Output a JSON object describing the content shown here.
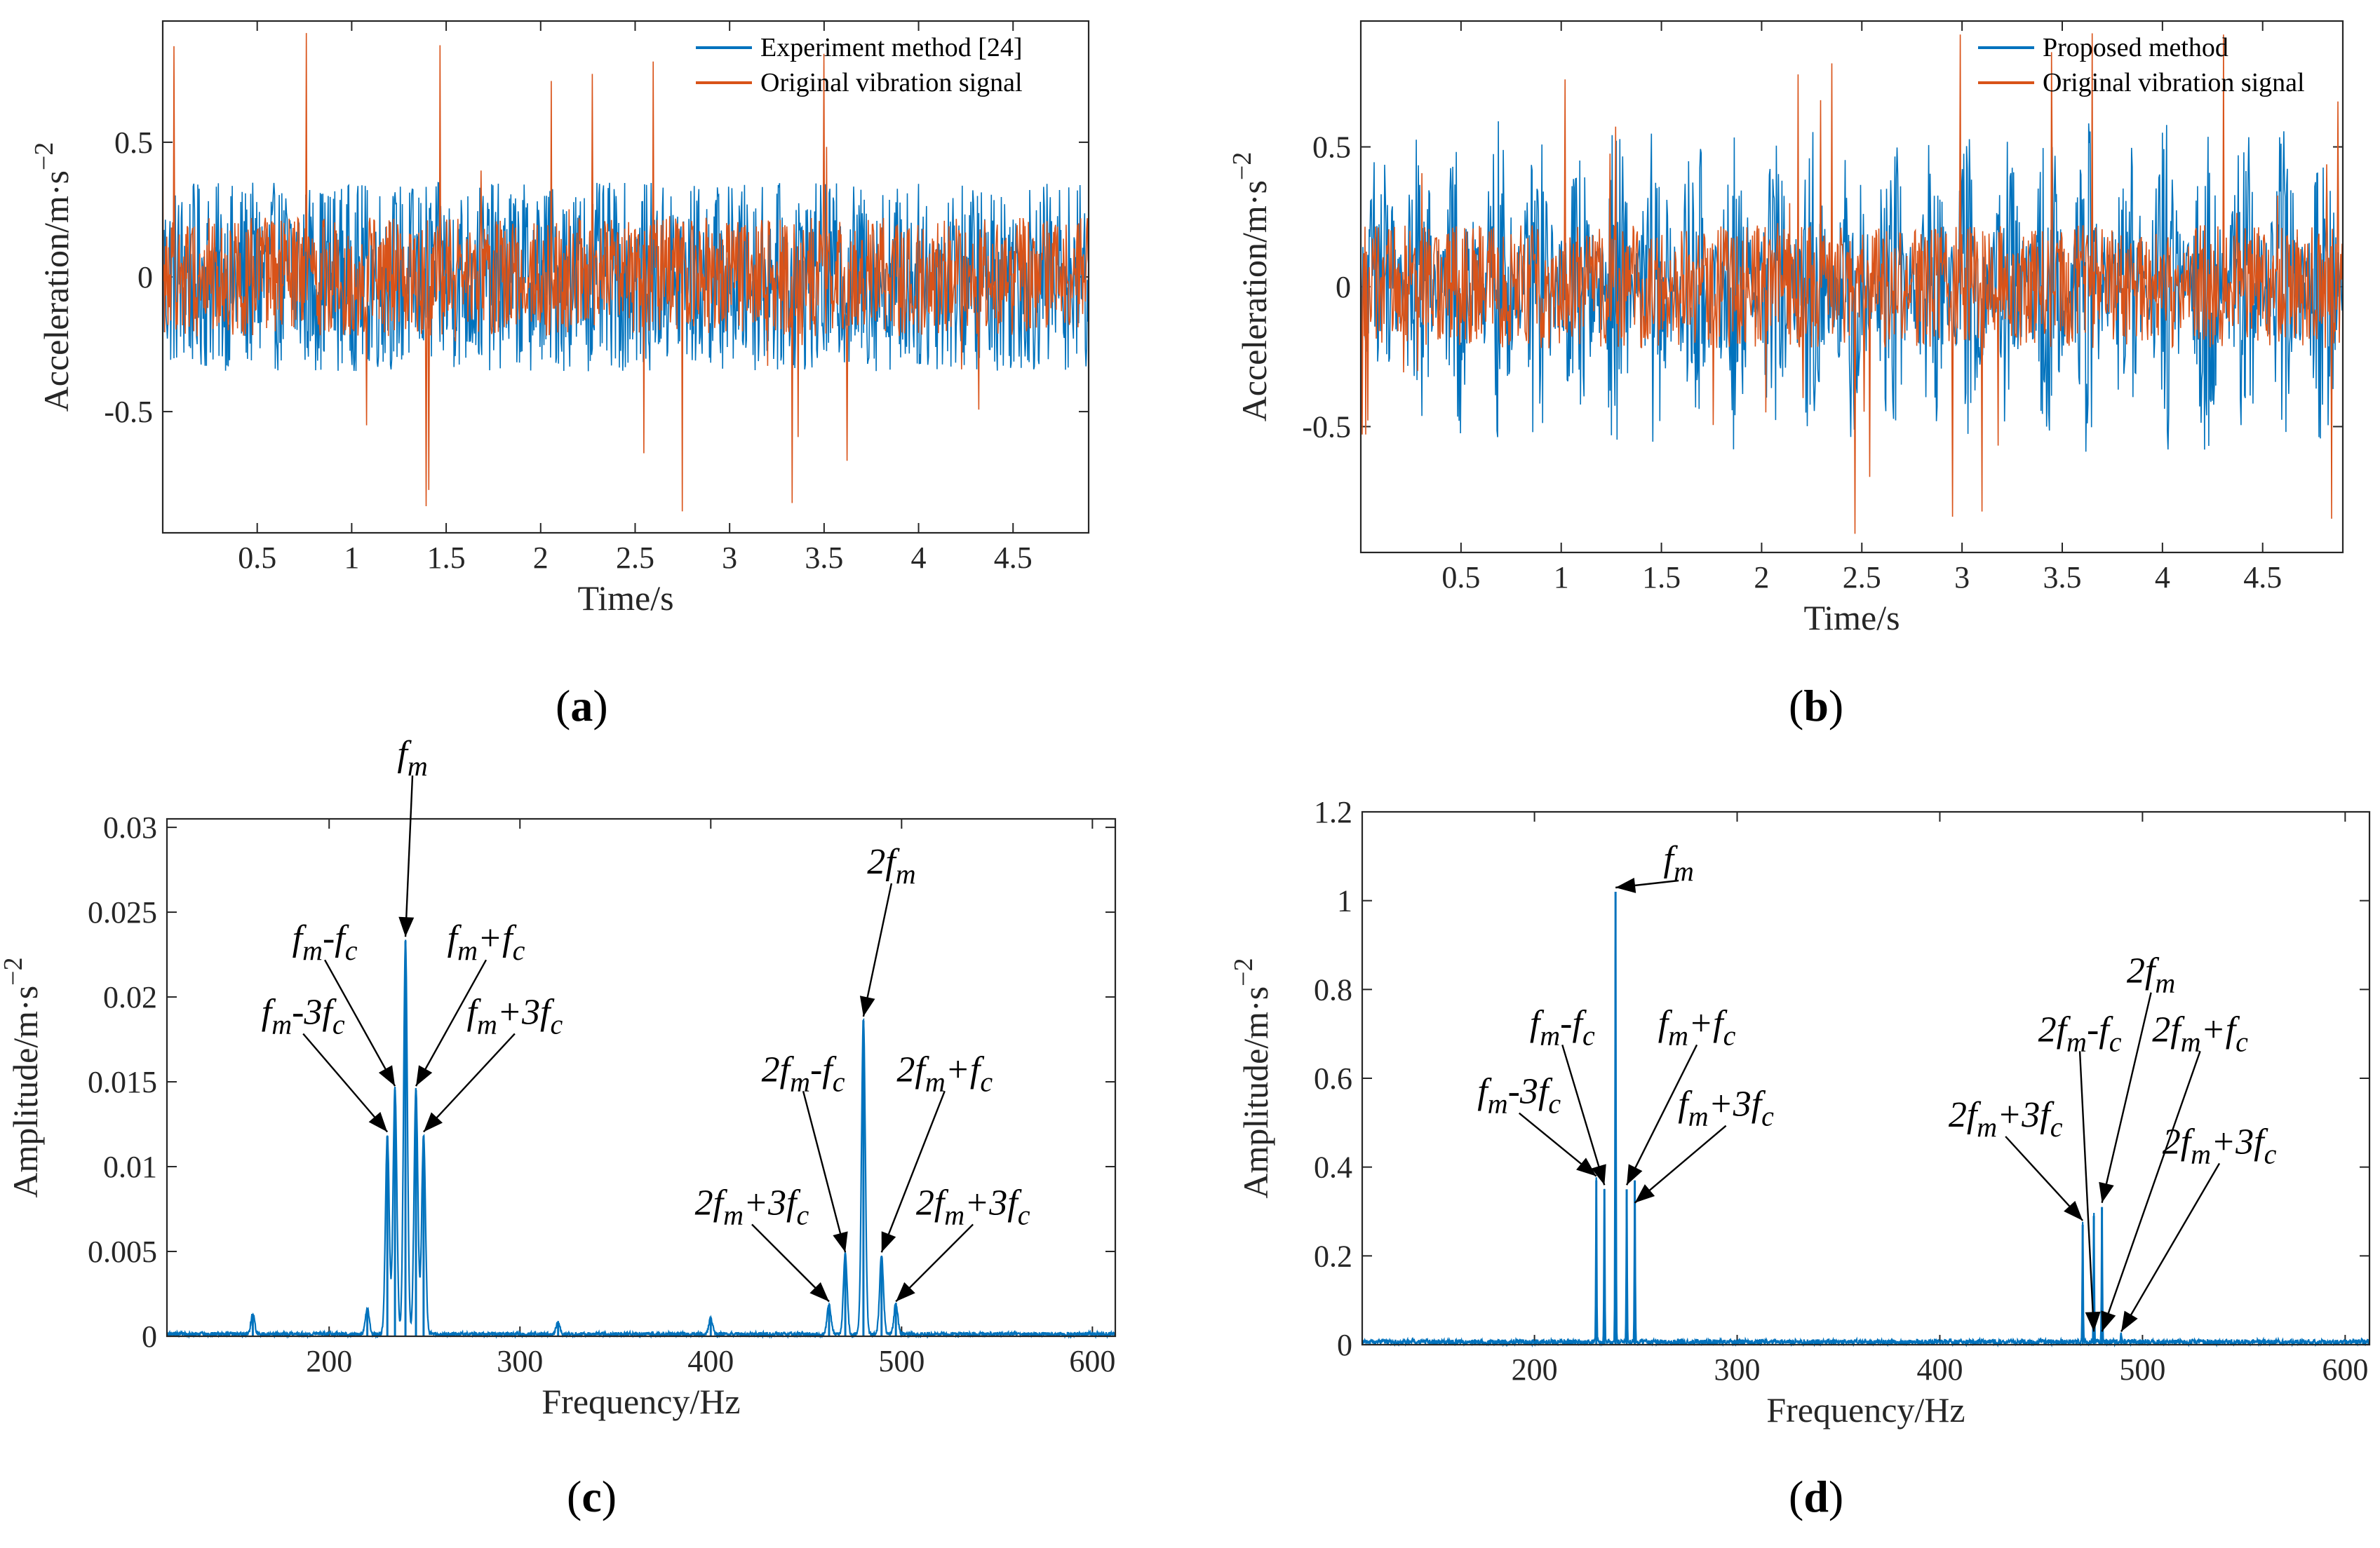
{
  "colors": {
    "blue": "#0072BD",
    "orange": "#D95319",
    "axis": "#262626"
  },
  "chart_data": [
    {
      "id": "a",
      "panel_label": "a",
      "type": "line",
      "xlabel": "Time/s",
      "ylabel": "Acceleration/m·s",
      "ylabel_exp": "−2",
      "xlim": [
        0.0,
        4.9
      ],
      "ylim": [
        -0.95,
        0.95
      ],
      "xticks": [
        0.5,
        1,
        1.5,
        2,
        2.5,
        3,
        3.5,
        4,
        4.5
      ],
      "xtick_labels": [
        "0.5",
        "1",
        "1.5",
        "2",
        "2.5",
        "3",
        "3.5",
        "4",
        "4.5"
      ],
      "yticks": [
        -0.5,
        0,
        0.5
      ],
      "ytick_labels": [
        "-0.5",
        "0",
        "0.5"
      ],
      "legend_position": "top-right",
      "series": [
        {
          "name": "Experiment method [24]",
          "color": "#0072BD",
          "typical_amplitude": 0.35,
          "peak_amplitude": 0.45,
          "modulated": false
        },
        {
          "name": "Original vibration signal",
          "color": "#D95319",
          "typical_amplitude": 0.22,
          "peak_amplitude": 0.92,
          "modulated": false
        }
      ],
      "annotations": []
    },
    {
      "id": "b",
      "panel_label": "b",
      "type": "line",
      "xlabel": "Time/s",
      "ylabel": "Acceleration/m·s",
      "ylabel_exp": "−2",
      "xlim": [
        0.0,
        4.9
      ],
      "ylim": [
        -0.95,
        0.95
      ],
      "xticks": [
        0.5,
        1,
        1.5,
        2,
        2.5,
        3,
        3.5,
        4,
        4.5
      ],
      "xtick_labels": [
        "0.5",
        "1",
        "1.5",
        "2",
        "2.5",
        "3",
        "3.5",
        "4",
        "4.5"
      ],
      "yticks": [
        -0.5,
        0,
        0.5
      ],
      "ytick_labels": [
        "-0.5",
        "0",
        "0.5"
      ],
      "legend_position": "top-right",
      "series": [
        {
          "name": "Proposed method",
          "color": "#0072BD",
          "typical_amplitude": 0.6,
          "peak_amplitude": 0.62,
          "modulated": true
        },
        {
          "name": "Original vibration signal",
          "color": "#D95319",
          "typical_amplitude": 0.22,
          "peak_amplitude": 0.92,
          "modulated": false
        }
      ],
      "annotations": []
    },
    {
      "id": "c",
      "panel_label": "c",
      "type": "line",
      "xlabel": "Frequency/Hz",
      "ylabel": "Amplitude/m·s",
      "ylabel_exp": "−2",
      "xlim": [
        115,
        612
      ],
      "ylim": [
        0,
        0.0305
      ],
      "xticks": [
        200,
        300,
        400,
        500,
        600
      ],
      "xtick_labels": [
        "200",
        "300",
        "400",
        "500",
        "600"
      ],
      "yticks": [
        0,
        0.005,
        0.01,
        0.015,
        0.02,
        0.025,
        0.03
      ],
      "ytick_labels": [
        "0",
        "0.005",
        "0.01",
        "0.015",
        "0.02",
        "0.025",
        "0.03"
      ],
      "series": [
        {
          "name": "",
          "color": "#0072BD",
          "peaks": [
            [
              240,
              0.0233
            ],
            [
              230.5,
              0.0118
            ],
            [
              249.5,
              0.0118
            ],
            [
              234.5,
              0.0145
            ],
            [
              245.5,
              0.0145
            ],
            [
              480,
              0.0186
            ],
            [
              470.5,
              0.0047
            ],
            [
              489.5,
              0.0047
            ],
            [
              462,
              0.0018
            ],
            [
              497,
              0.0018
            ],
            [
              160,
              0.0012
            ],
            [
              220,
              0.0015
            ],
            [
              400,
              0.0009
            ],
            [
              320,
              0.0007
            ]
          ],
          "peak_width": 2.2,
          "noise": 0.00025
        }
      ],
      "annotations": [
        {
          "parts": [
            [
              "f",
              "i"
            ],
            [
              "m",
              "sub"
            ]
          ],
          "x": 240,
          "y": 0.0233,
          "label_dx": 10,
          "label_dy": -250,
          "arrow": true
        },
        {
          "parts": [
            [
              "f",
              "i"
            ],
            [
              "m",
              "sub"
            ],
            [
              "-",
              ""
            ],
            [
              "f",
              "i"
            ],
            [
              "c",
              "sub"
            ]
          ],
          "x": 234.5,
          "y": 0.0145,
          "label_dx": -100,
          "label_dy": -200,
          "arrow": true
        },
        {
          "parts": [
            [
              "f",
              "i"
            ],
            [
              "m",
              "sub"
            ],
            [
              "+",
              ""
            ],
            [
              "f",
              "i"
            ],
            [
              "c",
              "sub"
            ]
          ],
          "x": 245.5,
          "y": 0.0145,
          "label_dx": 100,
          "label_dy": -200,
          "arrow": true
        },
        {
          "parts": [
            [
              "f",
              "i"
            ],
            [
              "m",
              "sub"
            ],
            [
              "-3",
              ""
            ],
            [
              "f",
              "i"
            ],
            [
              "c",
              "sub"
            ]
          ],
          "x": 230.5,
          "y": 0.0118,
          "label_dx": -120,
          "label_dy": -160,
          "arrow": true
        },
        {
          "parts": [
            [
              "f",
              "i"
            ],
            [
              "m",
              "sub"
            ],
            [
              "+3",
              ""
            ],
            [
              "f",
              "i"
            ],
            [
              "c",
              "sub"
            ]
          ],
          "x": 249.5,
          "y": 0.0118,
          "label_dx": 130,
          "label_dy": -160,
          "arrow": true
        },
        {
          "parts": [
            [
              "2",
              ""
            ],
            [
              "f",
              "i"
            ],
            [
              "m",
              "sub"
            ]
          ],
          "x": 480,
          "y": 0.0186,
          "label_dx": 40,
          "label_dy": -210,
          "arrow": true
        },
        {
          "parts": [
            [
              "2",
              ""
            ],
            [
              "f",
              "i"
            ],
            [
              "m",
              "sub"
            ],
            [
              "-",
              ""
            ],
            [
              "f",
              "i"
            ],
            [
              "c",
              "sub"
            ]
          ],
          "x": 470.5,
          "y": 0.0047,
          "label_dx": -60,
          "label_dy": -250,
          "arrow": true
        },
        {
          "parts": [
            [
              "2",
              ""
            ],
            [
              "f",
              "i"
            ],
            [
              "m",
              "sub"
            ],
            [
              "+",
              ""
            ],
            [
              "f",
              "i"
            ],
            [
              "c",
              "sub"
            ]
          ],
          "x": 489.5,
          "y": 0.0047,
          "label_dx": 90,
          "label_dy": -250,
          "arrow": true
        },
        {
          "parts": [
            [
              "2",
              ""
            ],
            [
              "f",
              "i"
            ],
            [
              "m",
              "sub"
            ],
            [
              "+3",
              ""
            ],
            [
              "f",
              "i"
            ],
            [
              "c",
              "sub"
            ]
          ],
          "x": 462,
          "y": 0.0018,
          "label_dx": -110,
          "label_dy": -130,
          "arrow": true
        },
        {
          "parts": [
            [
              "2",
              ""
            ],
            [
              "f",
              "i"
            ],
            [
              "m",
              "sub"
            ],
            [
              "+3",
              ""
            ],
            [
              "f",
              "i"
            ],
            [
              "c",
              "sub"
            ]
          ],
          "x": 497,
          "y": 0.0018,
          "label_dx": 110,
          "label_dy": -130,
          "arrow": true
        }
      ]
    },
    {
      "id": "d",
      "panel_label": "d",
      "type": "line",
      "xlabel": "Frequency/Hz",
      "ylabel": "Amplitude/m·s",
      "ylabel_exp": "−2",
      "xlim": [
        115,
        612
      ],
      "ylim": [
        0,
        1.2
      ],
      "xticks": [
        200,
        300,
        400,
        500,
        600
      ],
      "xtick_labels": [
        "200",
        "300",
        "400",
        "500",
        "600"
      ],
      "yticks": [
        0,
        0.2,
        0.4,
        0.6,
        0.8,
        1.0,
        1.2
      ],
      "ytick_labels": [
        "0",
        "0.2",
        "0.4",
        "0.6",
        "0.8",
        "1",
        "1.2"
      ],
      "series": [
        {
          "name": "",
          "color": "#0072BD",
          "peaks": [
            [
              240,
              1.02
            ],
            [
              230.5,
              0.37
            ],
            [
              249.5,
              0.37
            ],
            [
              234.5,
              0.35
            ],
            [
              245.5,
              0.35
            ],
            [
              480,
              0.31
            ],
            [
              470.5,
              0.27
            ],
            [
              489.5,
              0.02
            ],
            [
              476,
              0.29
            ]
          ],
          "peak_width": 0.5,
          "noise": 0.012
        }
      ],
      "annotations": [
        {
          "parts": [
            [
              "f",
              "i"
            ],
            [
              "m",
              "sub"
            ]
          ],
          "x": 240,
          "y": 1.02,
          "label_dx": 90,
          "label_dy": -30,
          "arrow": true
        },
        {
          "parts": [
            [
              "f",
              "i"
            ],
            [
              "m",
              "sub"
            ],
            [
              "-",
              ""
            ],
            [
              "f",
              "i"
            ],
            [
              "c",
              "sub"
            ]
          ],
          "x": 234.5,
          "y": 0.35,
          "label_dx": -60,
          "label_dy": -220,
          "arrow": true
        },
        {
          "parts": [
            [
              "f",
              "i"
            ],
            [
              "m",
              "sub"
            ],
            [
              "+",
              ""
            ],
            [
              "f",
              "i"
            ],
            [
              "c",
              "sub"
            ]
          ],
          "x": 245.5,
          "y": 0.35,
          "label_dx": 100,
          "label_dy": -220,
          "arrow": true
        },
        {
          "parts": [
            [
              "f",
              "i"
            ],
            [
              "m",
              "sub"
            ],
            [
              "-3",
              ""
            ],
            [
              "f",
              "i"
            ],
            [
              "c",
              "sub"
            ]
          ],
          "x": 230.5,
          "y": 0.37,
          "label_dx": -110,
          "label_dy": -110,
          "arrow": true
        },
        {
          "parts": [
            [
              "f",
              "i"
            ],
            [
              "m",
              "sub"
            ],
            [
              "+3",
              ""
            ],
            [
              "f",
              "i"
            ],
            [
              "c",
              "sub"
            ]
          ],
          "x": 249.5,
          "y": 0.31,
          "label_dx": 130,
          "label_dy": -130,
          "arrow": true
        },
        {
          "parts": [
            [
              "2",
              ""
            ],
            [
              "f",
              "i"
            ],
            [
              "m",
              "sub"
            ]
          ],
          "x": 480,
          "y": 0.31,
          "label_dx": 70,
          "label_dy": -320,
          "arrow": true
        },
        {
          "parts": [
            [
              "2",
              ""
            ],
            [
              "f",
              "i"
            ],
            [
              "m",
              "sub"
            ],
            [
              "-",
              ""
            ],
            [
              "f",
              "i"
            ],
            [
              "c",
              "sub"
            ]
          ],
          "x": 476,
          "y": 0.02,
          "label_dx": -20,
          "label_dy": -420,
          "arrow": true
        },
        {
          "parts": [
            [
              "2",
              ""
            ],
            [
              "f",
              "i"
            ],
            [
              "m",
              "sub"
            ],
            [
              "+",
              ""
            ],
            [
              "f",
              "i"
            ],
            [
              "c",
              "sub"
            ]
          ],
          "x": 480,
          "y": 0.02,
          "label_dx": 140,
          "label_dy": -420,
          "arrow": true
        },
        {
          "parts": [
            [
              "2",
              ""
            ],
            [
              "f",
              "i"
            ],
            [
              "m",
              "sub"
            ],
            [
              "+3",
              ""
            ],
            [
              "f",
              "i"
            ],
            [
              "c",
              "sub"
            ]
          ],
          "x": 470.5,
          "y": 0.27,
          "label_dx": -110,
          "label_dy": -140,
          "arrow": true
        },
        {
          "parts": [
            [
              "2",
              ""
            ],
            [
              "f",
              "i"
            ],
            [
              "m",
              "sub"
            ],
            [
              "+3",
              ""
            ],
            [
              "f",
              "i"
            ],
            [
              "c",
              "sub"
            ]
          ],
          "x": 489.5,
          "y": 0.02,
          "label_dx": 140,
          "label_dy": -260,
          "arrow": true
        }
      ]
    }
  ]
}
